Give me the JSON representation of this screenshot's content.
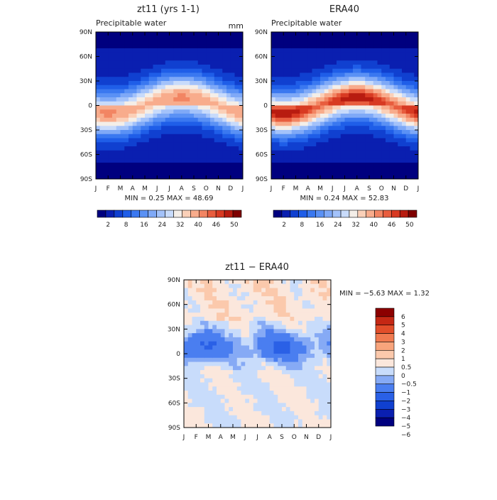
{
  "chart_data": [
    {
      "type": "heatmap",
      "title": "zt11 (yrs 1-1)",
      "subtitle": "Precipitable water",
      "units": "mm",
      "x_ticks": [
        "J",
        "F",
        "M",
        "A",
        "M",
        "J",
        "J",
        "A",
        "S",
        "O",
        "N",
        "D",
        "J"
      ],
      "y_ticks": [
        "90N",
        "60N",
        "30N",
        "0",
        "30S",
        "60S",
        "90S"
      ],
      "stats_text": "MIN =    0.25 MAX =   48.69",
      "min": 0.25,
      "max": 48.69,
      "colorbar_labels": [
        "2",
        "8",
        "16",
        "24",
        "32",
        "40",
        "46",
        "50"
      ],
      "colorbar_levels": [
        0,
        2,
        4,
        8,
        12,
        16,
        20,
        24,
        28,
        32,
        36,
        40,
        44,
        46,
        48,
        50,
        52
      ],
      "equator_peak": 40,
      "seasonal_shift_deg": 10,
      "peak_month_index": 7
    },
    {
      "type": "heatmap",
      "title": "ERA40",
      "subtitle": "Precipitable water",
      "x_ticks": [
        "J",
        "F",
        "M",
        "A",
        "M",
        "J",
        "J",
        "A",
        "S",
        "O",
        "N",
        "D",
        "J"
      ],
      "y_ticks": [
        "90N",
        "60N",
        "30N",
        "0",
        "30S",
        "60S",
        "90S"
      ],
      "stats_text": "MIN =    0.24 MAX =   52.83",
      "min": 0.24,
      "max": 52.83,
      "colorbar_labels": [
        "2",
        "8",
        "16",
        "24",
        "32",
        "40",
        "46",
        "50"
      ],
      "colorbar_levels": [
        0,
        2,
        4,
        8,
        12,
        16,
        20,
        24,
        28,
        32,
        36,
        40,
        44,
        46,
        48,
        50,
        52
      ],
      "equator_peak": 46,
      "seasonal_shift_deg": 10,
      "peak_month_index": 7
    },
    {
      "type": "heatmap",
      "title": "zt11 − ERA40",
      "x_ticks": [
        "J",
        "F",
        "M",
        "A",
        "M",
        "J",
        "J",
        "A",
        "S",
        "O",
        "N",
        "D",
        "J"
      ],
      "y_ticks": [
        "90N",
        "60N",
        "30N",
        "0",
        "30S",
        "60S",
        "90S"
      ],
      "stats_text": "MIN =   −5.63 MAX =    1.32",
      "min": -5.63,
      "max": 1.32,
      "colorbar_labels": [
        "6",
        "5",
        "4",
        "3",
        "2",
        "1",
        "0.5",
        "0",
        "−0.5",
        "−1",
        "−2",
        "−3",
        "−4",
        "−5",
        "−6"
      ],
      "colorbar_levels": [
        -6,
        -5,
        -4,
        -3,
        -2,
        -1,
        -0.5,
        0,
        0.5,
        1,
        2,
        3,
        4,
        5,
        6
      ]
    }
  ],
  "palette": {
    "blue_to_red": [
      "#00007f",
      "#0a1fb0",
      "#1040d0",
      "#1f5ee8",
      "#3a78f0",
      "#5a91f5",
      "#7fa9f7",
      "#a3c2fa",
      "#c8dbfb",
      "#f4eee8",
      "#fbd0b8",
      "#f8ac8c",
      "#f28563",
      "#e85d3e",
      "#d83a22",
      "#b81c10",
      "#7f0000"
    ],
    "diff": [
      "#00007f",
      "#0a1fb0",
      "#1040d0",
      "#2a60e6",
      "#4a7ef0",
      "#86aaf5",
      "#c8dcfb",
      "#fbe7dc",
      "#fbc9ac",
      "#f8a47c",
      "#f07a50",
      "#e24e2a",
      "#c52814",
      "#8c0000"
    ]
  }
}
